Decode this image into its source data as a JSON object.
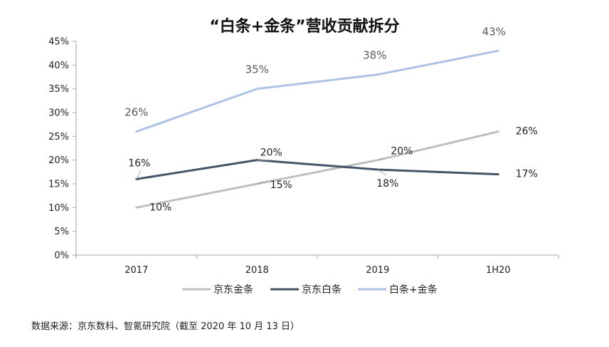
{
  "chart_data": {
    "type": "line",
    "title": "“白条+金条”营收贡献拆分",
    "categories": [
      "2017",
      "2018",
      "2019",
      "1H20"
    ],
    "ylim": [
      0,
      45
    ],
    "ytick_labels": [
      "0%",
      "5%",
      "10%",
      "15%",
      "20%",
      "25%",
      "30%",
      "35%",
      "40%",
      "45%"
    ],
    "grid": false,
    "legend_position": "bottom",
    "series": [
      {
        "name": "京东金条",
        "values": [
          10,
          15,
          20,
          26
        ],
        "labels": [
          "10%",
          "15%",
          "20%",
          "26%"
        ],
        "color": "#bfbfbf"
      },
      {
        "name": "京东白条",
        "values": [
          16,
          20,
          18,
          17
        ],
        "labels": [
          "16%",
          "20%",
          "18%",
          "17%"
        ],
        "color": "#44546a"
      },
      {
        "name": "白条+金条",
        "values": [
          26,
          35,
          38,
          43
        ],
        "labels": [
          "26%",
          "35%",
          "38%",
          "43%"
        ],
        "color": "#adc3e4"
      }
    ]
  },
  "source_note": "数据来源：京东数科、智氪研究院（截至 2020 年 10 月 13 日）"
}
